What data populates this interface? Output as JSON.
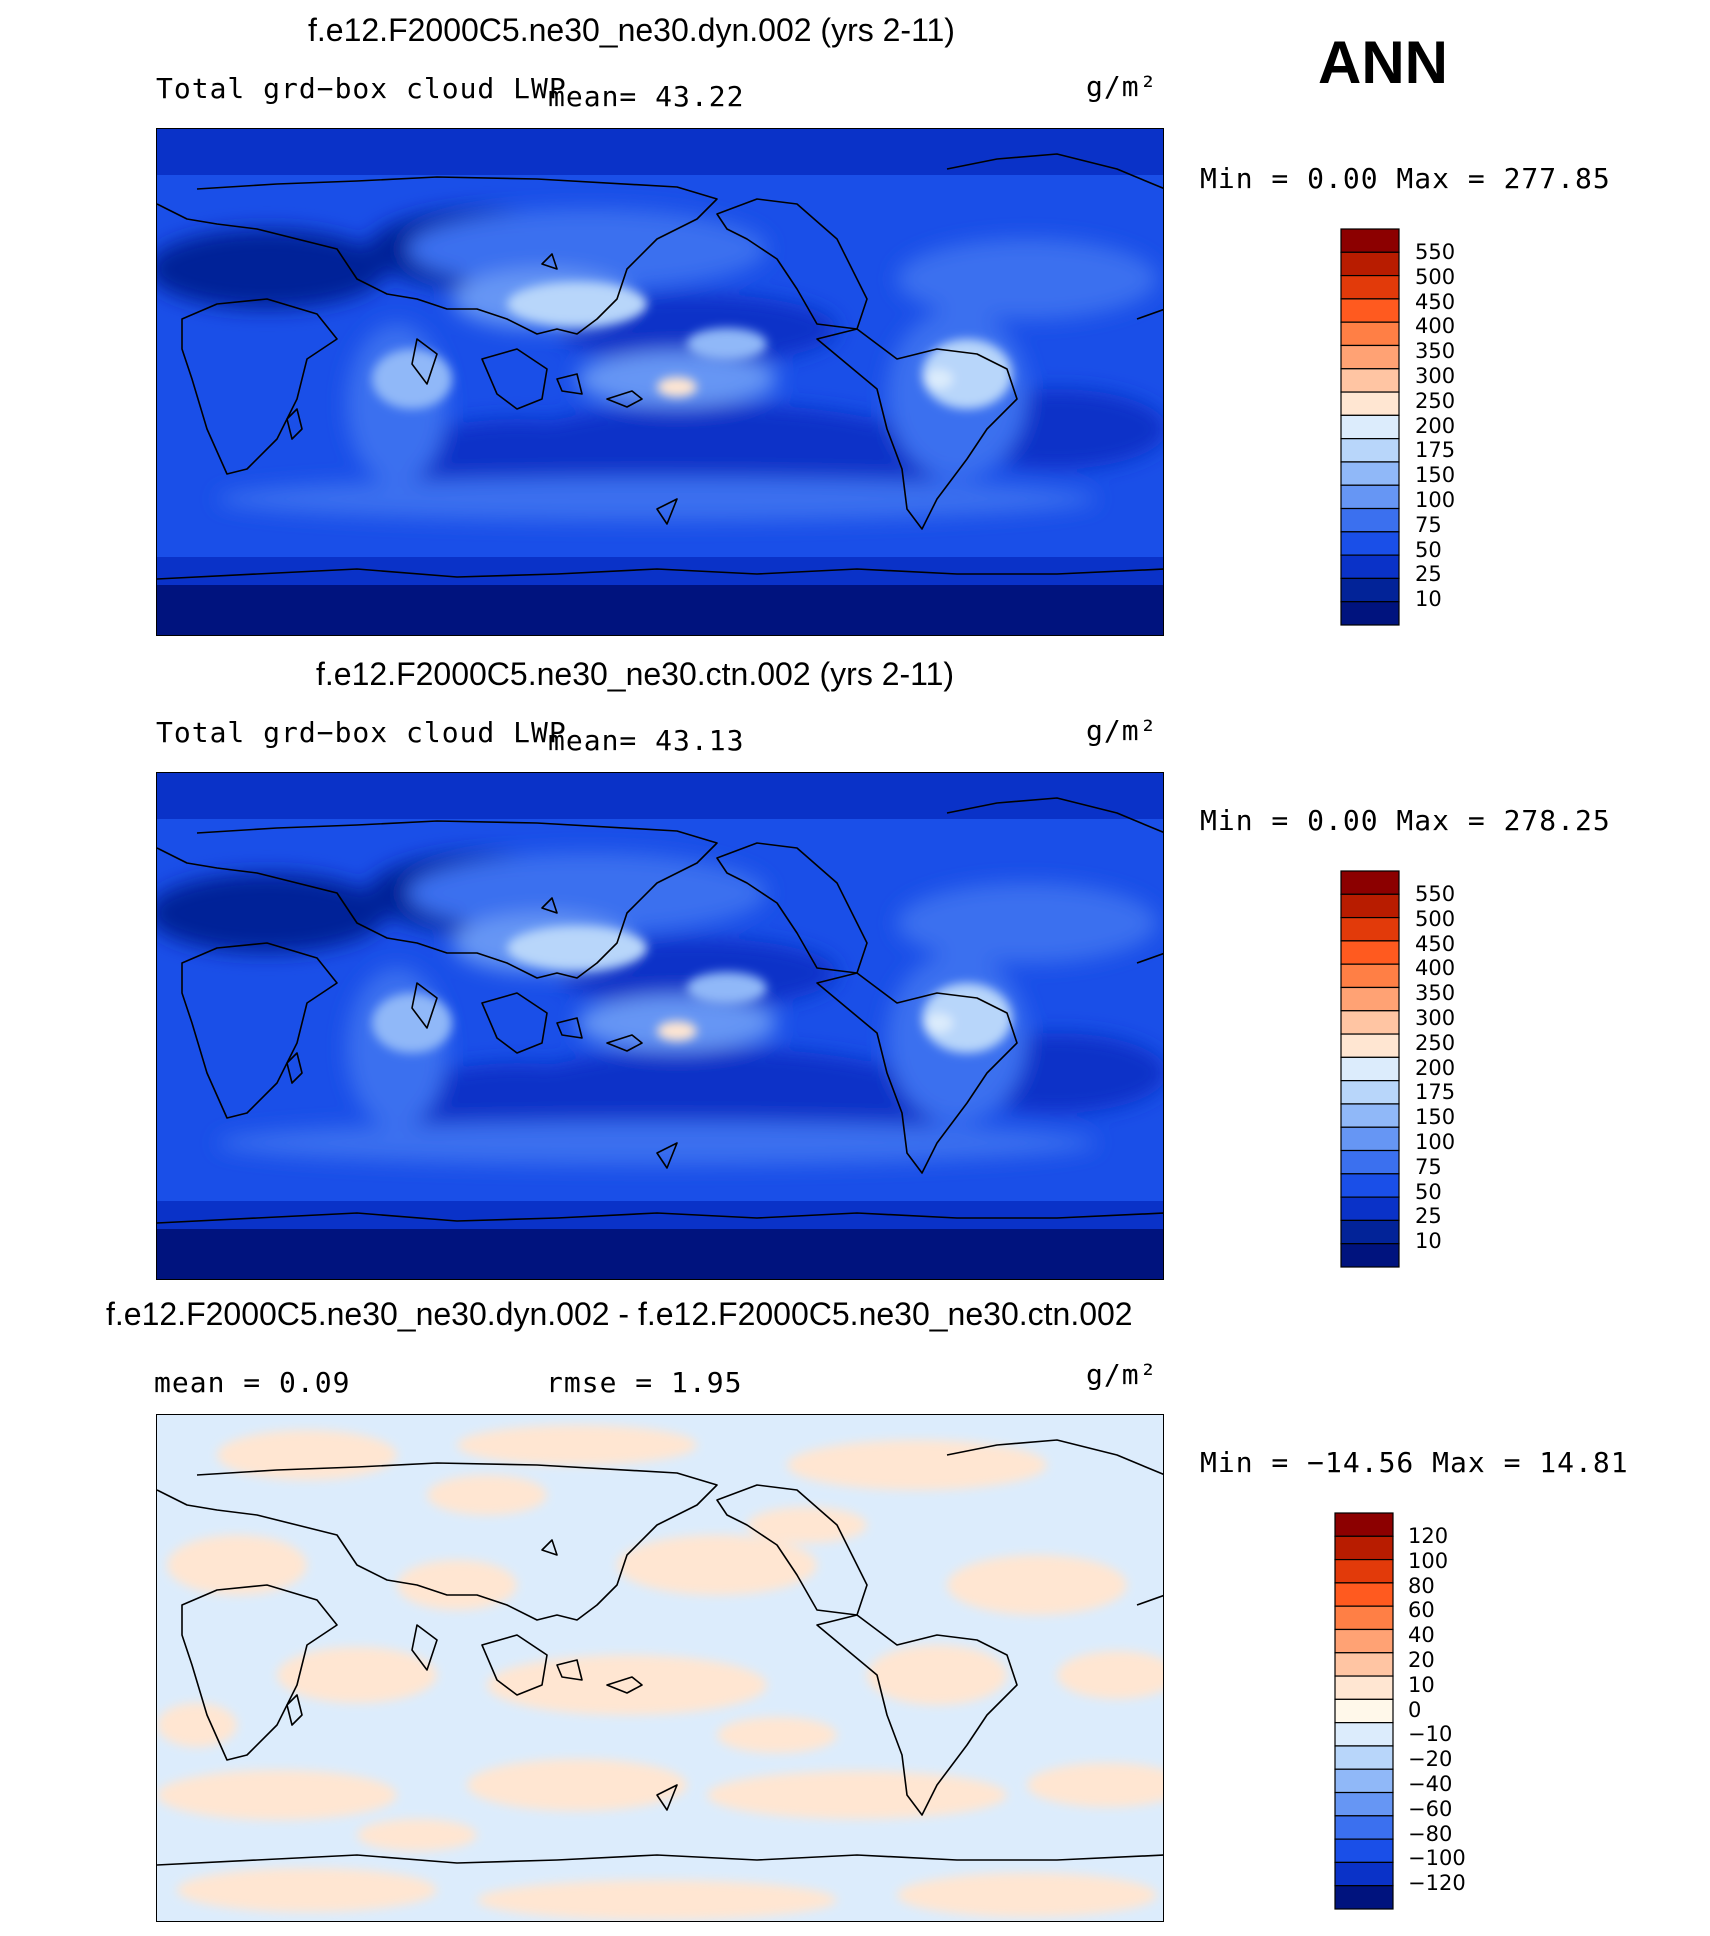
{
  "season": "ANN",
  "panels": [
    {
      "title": "f.e12.F2000C5.ne30_ne30.dyn.002 (yrs 2-11)",
      "left_label": "Total grd−box cloud LWP",
      "center_label": "mean=   43.22",
      "units": "g/m²",
      "minmax": "Min =    0.00 Max = 277.85",
      "colorbar_labels": [
        "550",
        "500",
        "450",
        "400",
        "350",
        "300",
        "250",
        "200",
        "175",
        "150",
        "100",
        "75",
        "50",
        "25",
        "10"
      ],
      "colorbar_colors": [
        "#8c0000",
        "#b81c00",
        "#e23a0a",
        "#ff5a1f",
        "#ff7f45",
        "#ffa274",
        "#ffc5a3",
        "#ffe6d2",
        "#dcecfc",
        "#b8d6fa",
        "#90b8f8",
        "#6696f4",
        "#3b70ef",
        "#1a4fe8",
        "#0a32c8",
        "#022398",
        "#00137e"
      ]
    },
    {
      "title": "f.e12.F2000C5.ne30_ne30.ctn.002 (yrs 2-11)",
      "left_label": "Total grd−box cloud LWP",
      "center_label": "mean=   43.13",
      "units": "g/m²",
      "minmax": "Min =    0.00 Max = 278.25",
      "colorbar_labels": [
        "550",
        "500",
        "450",
        "400",
        "350",
        "300",
        "250",
        "200",
        "175",
        "150",
        "100",
        "75",
        "50",
        "25",
        "10"
      ],
      "colorbar_colors": [
        "#8c0000",
        "#b81c00",
        "#e23a0a",
        "#ff5a1f",
        "#ff7f45",
        "#ffa274",
        "#ffc5a3",
        "#ffe6d2",
        "#dcecfc",
        "#b8d6fa",
        "#90b8f8",
        "#6696f4",
        "#3b70ef",
        "#1a4fe8",
        "#0a32c8",
        "#022398",
        "#00137e"
      ]
    },
    {
      "title": "f.e12.F2000C5.ne30_ne30.dyn.002 - f.e12.F2000C5.ne30_ne30.ctn.002",
      "left_label": "mean =    0.09",
      "center_label": "rmse =    1.95",
      "units": "g/m²",
      "minmax": "Min = −14.56 Max =  14.81",
      "colorbar_labels": [
        "120",
        "100",
        "80",
        "60",
        "40",
        "20",
        "10",
        "0",
        "−10",
        "−20",
        "−40",
        "−60",
        "−80",
        "−100",
        "−120"
      ],
      "colorbar_colors": [
        "#8c0000",
        "#b81c00",
        "#e23a0a",
        "#ff5a1f",
        "#ff7f45",
        "#ffa274",
        "#ffc5a3",
        "#ffe6d2",
        "#fff8ea",
        "#dcecfc",
        "#b8d6fa",
        "#90b8f8",
        "#6696f4",
        "#3b70ef",
        "#1a4fe8",
        "#0a32c8",
        "#00137e"
      ]
    }
  ]
}
